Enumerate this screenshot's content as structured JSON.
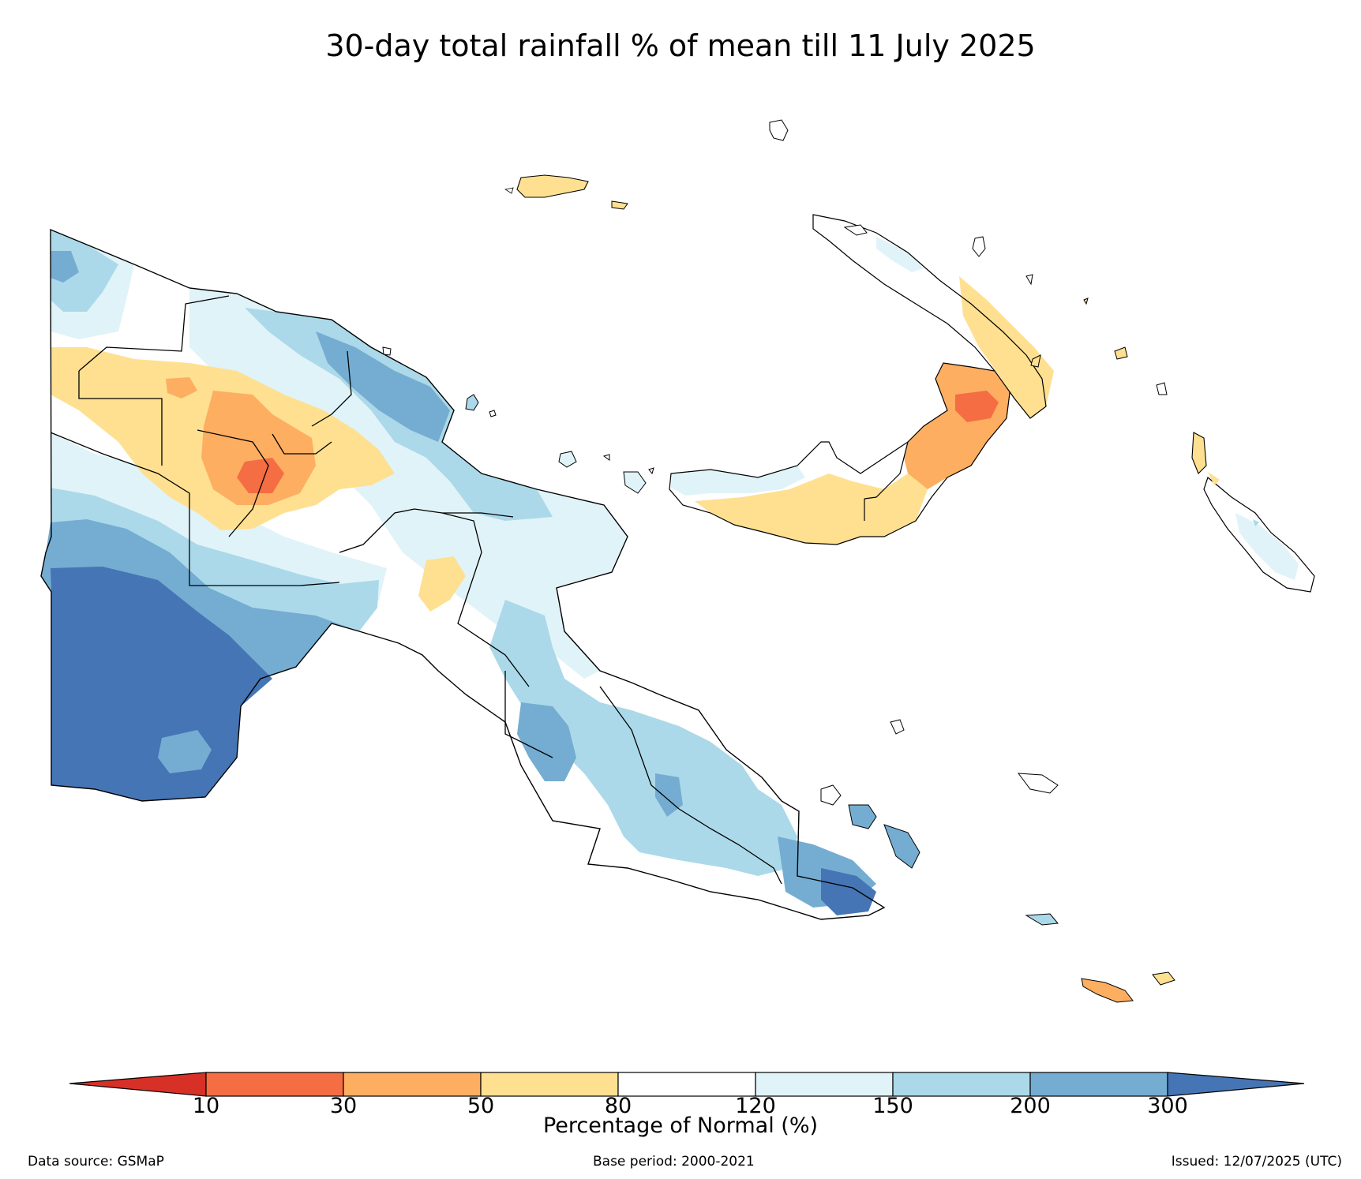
{
  "title": "30-day total rainfall % of mean till 11 July 2025",
  "colorbar": {
    "label": "Percentage of Normal (%)",
    "ticks": [
      "10",
      "30",
      "50",
      "80",
      "120",
      "150",
      "200",
      "300"
    ],
    "bins": [
      {
        "range": "<10",
        "color": "#d73027",
        "extend": "min"
      },
      {
        "range": "10-30",
        "color": "#f46d43"
      },
      {
        "range": "30-50",
        "color": "#fdae61"
      },
      {
        "range": "50-80",
        "color": "#fee090"
      },
      {
        "range": "80-120",
        "color": "#ffffff"
      },
      {
        "range": "120-150",
        "color": "#e0f3f8"
      },
      {
        "range": "150-200",
        "color": "#abd9e9"
      },
      {
        "range": "200-300",
        "color": "#74add1"
      },
      {
        "range": ">300",
        "color": "#4575b4",
        "extend": "max"
      }
    ]
  },
  "footer": {
    "source": "Data source: GSMaP",
    "base_period": "Base period: 2000-2021",
    "issued": "Issued: 12/07/2025 (UTC)"
  }
}
